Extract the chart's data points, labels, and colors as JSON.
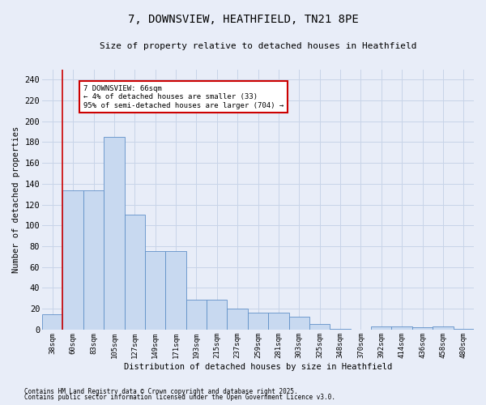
{
  "title": "7, DOWNSVIEW, HEATHFIELD, TN21 8PE",
  "subtitle": "Size of property relative to detached houses in Heathfield",
  "xlabel": "Distribution of detached houses by size in Heathfield",
  "ylabel": "Number of detached properties",
  "categories": [
    "38sqm",
    "60sqm",
    "83sqm",
    "105sqm",
    "127sqm",
    "149sqm",
    "171sqm",
    "193sqm",
    "215sqm",
    "237sqm",
    "259sqm",
    "281sqm",
    "303sqm",
    "325sqm",
    "348sqm",
    "370sqm",
    "392sqm",
    "414sqm",
    "436sqm",
    "458sqm",
    "480sqm"
  ],
  "values": [
    15,
    134,
    134,
    185,
    110,
    75,
    75,
    29,
    29,
    20,
    16,
    16,
    12,
    5,
    1,
    0,
    3,
    3,
    2,
    3,
    1
  ],
  "bar_color": "#c8d9f0",
  "bar_edge_color": "#6090c8",
  "grid_color": "#c8d4e8",
  "background_color": "#e8edf8",
  "vline_x": 1,
  "vline_color": "#cc0000",
  "annotation_text": "7 DOWNSVIEW: 66sqm\n← 4% of detached houses are smaller (33)\n95% of semi-detached houses are larger (704) →",
  "annotation_box_color": "#ffffff",
  "annotation_box_edge": "#cc0000",
  "ylim": [
    0,
    250
  ],
  "yticks": [
    0,
    20,
    40,
    60,
    80,
    100,
    120,
    140,
    160,
    180,
    200,
    220,
    240
  ],
  "footnote1": "Contains HM Land Registry data © Crown copyright and database right 2025.",
  "footnote2": "Contains public sector information licensed under the Open Government Licence v3.0."
}
